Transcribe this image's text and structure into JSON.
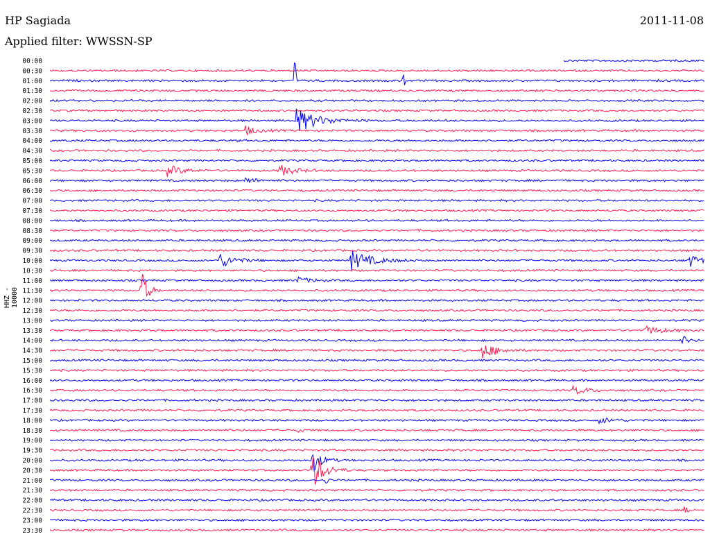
{
  "header": {
    "station": "HP Sagiada",
    "date": "2011-11-08",
    "filter": "Applied filter: WWSSN-SP"
  },
  "chart_data": {
    "type": "line",
    "ylabel": "HHZ - 10000",
    "row_labels": [
      "00:00",
      "00:30",
      "01:00",
      "01:30",
      "02:00",
      "02:30",
      "03:00",
      "03:30",
      "04:00",
      "04:30",
      "05:00",
      "05:30",
      "06:00",
      "06:30",
      "07:00",
      "07:30",
      "08:00",
      "08:30",
      "09:00",
      "09:30",
      "10:00",
      "10:30",
      "11:00",
      "11:30",
      "12:00",
      "12:30",
      "13:00",
      "13:30",
      "14:00",
      "14:30",
      "15:00",
      "15:30",
      "16:00",
      "16:30",
      "17:00",
      "17:30",
      "18:00",
      "18:30",
      "19:00",
      "19:30",
      "20:00",
      "20:30",
      "21:00",
      "21:30",
      "22:00",
      "22:30",
      "23:00",
      "23:30"
    ],
    "row_colors": [
      "#0000ee",
      "#ff1a4d"
    ],
    "trace_span": [
      0,
      1
    ],
    "trace_start": [
      0.785,
      0.0,
      0.0,
      0.0,
      0.0,
      0.0,
      0.0,
      0.0,
      0.0,
      0.0,
      0.0,
      0.0,
      0.0,
      0.0,
      0.0,
      0.0,
      0.0,
      0.0,
      0.0,
      0.0,
      0.0,
      0.0,
      0.0,
      0.0,
      0.0,
      0.0,
      0.0,
      0.0,
      0.0,
      0.0,
      0.0,
      0.0,
      0.0,
      0.0,
      0.0,
      0.0,
      0.0,
      0.0,
      0.0,
      0.0,
      0.0,
      0.0,
      0.0,
      0.0,
      0.0,
      0.0,
      0.0,
      0.0
    ],
    "events": [
      {
        "row": 2,
        "pos": 0.375,
        "amp": 30,
        "dur": 0.003
      },
      {
        "row": 2,
        "pos": 0.54,
        "amp": 28,
        "dur": 0.003
      },
      {
        "row": 6,
        "pos": 0.376,
        "amp": 18,
        "dur": 0.075
      },
      {
        "row": 7,
        "pos": 0.3,
        "amp": 6,
        "dur": 0.04
      },
      {
        "row": 11,
        "pos": 0.18,
        "amp": 8,
        "dur": 0.05
      },
      {
        "row": 11,
        "pos": 0.35,
        "amp": 9,
        "dur": 0.05
      },
      {
        "row": 12,
        "pos": 0.3,
        "amp": 4,
        "dur": 0.04
      },
      {
        "row": 20,
        "pos": 0.26,
        "amp": 10,
        "dur": 0.05
      },
      {
        "row": 20,
        "pos": 0.46,
        "amp": 14,
        "dur": 0.07
      },
      {
        "row": 20,
        "pos": 0.975,
        "amp": 10,
        "dur": 0.04
      },
      {
        "row": 22,
        "pos": 0.38,
        "amp": 4,
        "dur": 0.05
      },
      {
        "row": 23,
        "pos": 0.14,
        "amp": 30,
        "dur": 0.02
      },
      {
        "row": 27,
        "pos": 0.91,
        "amp": 6,
        "dur": 0.06
      },
      {
        "row": 28,
        "pos": 0.965,
        "amp": 8,
        "dur": 0.02
      },
      {
        "row": 29,
        "pos": 0.66,
        "amp": 12,
        "dur": 0.05
      },
      {
        "row": 33,
        "pos": 0.8,
        "amp": 6,
        "dur": 0.05
      },
      {
        "row": 36,
        "pos": 0.84,
        "amp": 4,
        "dur": 0.05
      },
      {
        "row": 37,
        "pos": 0.38,
        "amp": 5,
        "dur": 0.01
      },
      {
        "row": 40,
        "pos": 0.4,
        "amp": 20,
        "dur": 0.03
      },
      {
        "row": 41,
        "pos": 0.4,
        "amp": 28,
        "dur": 0.04
      },
      {
        "row": 42,
        "pos": 0.42,
        "amp": 7,
        "dur": 0.01
      },
      {
        "row": 45,
        "pos": 0.97,
        "amp": 5,
        "dur": 0.01
      }
    ]
  }
}
